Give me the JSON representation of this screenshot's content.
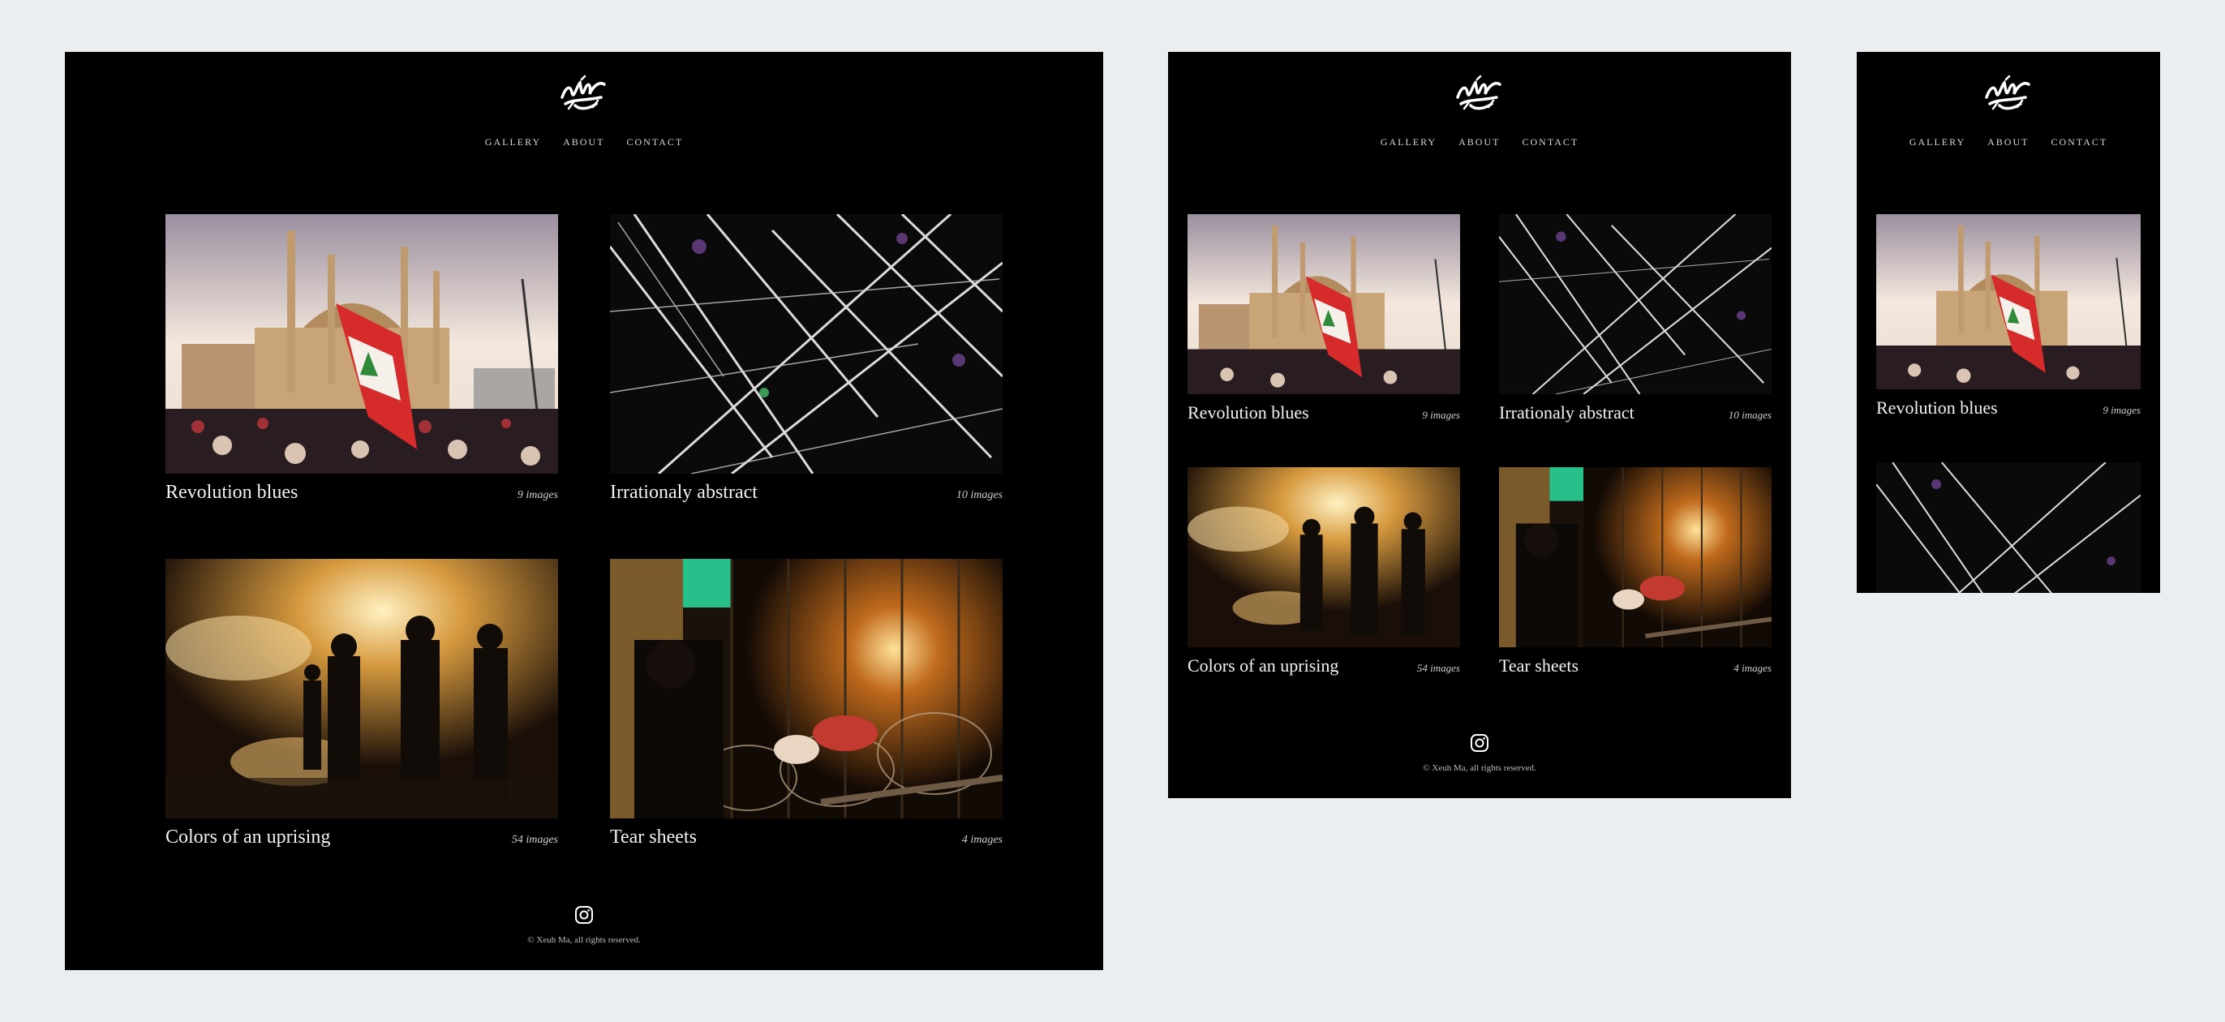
{
  "nav": [
    "GALLERY",
    "ABOUT",
    "CONTACT"
  ],
  "galleries": [
    {
      "title": "Revolution blues",
      "count": "9 images"
    },
    {
      "title": "Irrationaly abstract",
      "count": "10 images"
    },
    {
      "title": "Colors of an uprising",
      "count": "54 images"
    },
    {
      "title": "Tear sheets",
      "count": "4 images"
    }
  ],
  "footer": {
    "copyright": "© Xeuh Ma, all rights reserved.",
    "social_icon": "instagram-icon"
  },
  "colors": {
    "page_bg": "#ebeef1",
    "site_bg": "#000000",
    "text": "#ffffff"
  }
}
